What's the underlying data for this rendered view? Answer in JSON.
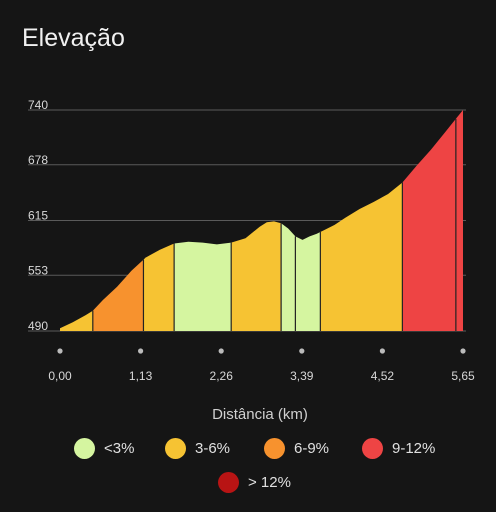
{
  "title": "Elevação",
  "chart_data": {
    "type": "area",
    "title": "Elevação",
    "xlabel": "Distância (km)",
    "ylabel": "",
    "xlim": [
      0,
      5.65
    ],
    "ylim": [
      490,
      740
    ],
    "yticks": [
      490,
      553,
      615,
      678,
      740
    ],
    "ytick_labels": [
      "490",
      "553",
      "615",
      "678",
      "740"
    ],
    "xticks": [
      0,
      1.13,
      2.26,
      3.39,
      4.52,
      5.65
    ],
    "xtick_labels": [
      "0,00",
      "1,13",
      "2,26",
      "3,39",
      "4,52",
      "5,65"
    ],
    "grid": true,
    "x": [
      0,
      0.18,
      0.36,
      0.46,
      0.6,
      0.8,
      1.0,
      1.2,
      1.4,
      1.6,
      1.8,
      2.0,
      2.2,
      2.4,
      2.6,
      2.8,
      2.9,
      3.0,
      3.1,
      3.2,
      3.3,
      3.4,
      3.5,
      3.6,
      3.7,
      3.85,
      4.0,
      4.2,
      4.4,
      4.6,
      4.8,
      5.0,
      5.2,
      5.4,
      5.55,
      5.65
    ],
    "y": [
      493,
      500,
      508,
      513,
      525,
      540,
      558,
      573,
      582,
      589,
      591,
      590,
      588,
      590,
      595,
      608,
      613,
      614,
      612,
      606,
      597,
      593,
      597,
      600,
      604,
      610,
      618,
      628,
      636,
      645,
      658,
      677,
      695,
      715,
      730,
      740
    ],
    "segments": [
      {
        "x_start": 0.0,
        "x_end": 0.46,
        "class": "3-6%"
      },
      {
        "x_start": 0.46,
        "x_end": 1.17,
        "class": "6-9%"
      },
      {
        "x_start": 1.17,
        "x_end": 1.6,
        "class": "3-6%"
      },
      {
        "x_start": 1.6,
        "x_end": 2.4,
        "class": "<3%"
      },
      {
        "x_start": 2.4,
        "x_end": 3.1,
        "class": "3-6%"
      },
      {
        "x_start": 3.1,
        "x_end": 3.3,
        "class": "<3%"
      },
      {
        "x_start": 3.3,
        "x_end": 3.65,
        "class": "<3%"
      },
      {
        "x_start": 3.65,
        "x_end": 4.8,
        "class": "3-6%"
      },
      {
        "x_start": 4.8,
        "x_end": 5.55,
        "class": "9-12%"
      },
      {
        "x_start": 5.55,
        "x_end": 5.65,
        "class": "9-12%"
      }
    ],
    "legend": [
      {
        "label": "<3%",
        "color": "#d5f5a0"
      },
      {
        "label": "3-6%",
        "color": "#f6c333"
      },
      {
        "label": "6-9%",
        "color": "#f7922e"
      },
      {
        "label": "9-12%",
        "color": "#ee4444"
      },
      {
        "label": "> 12%",
        "color": "#b81414"
      }
    ],
    "legend_position": "bottom"
  },
  "colors": {
    "background": "#151515",
    "grid": "#5a5a5a",
    "separator": "#222222"
  }
}
